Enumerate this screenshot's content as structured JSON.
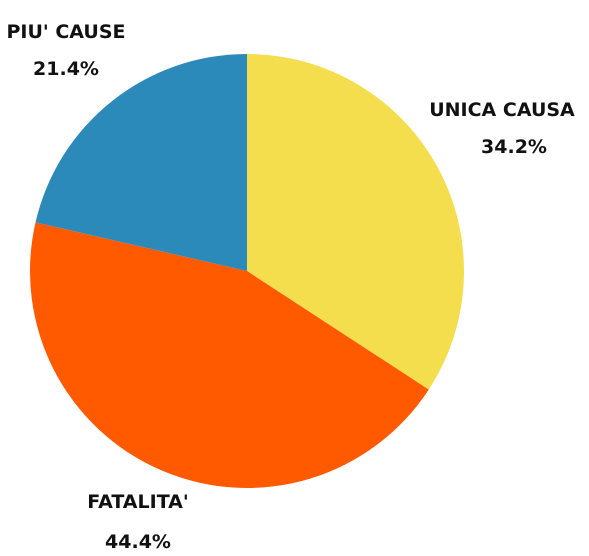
{
  "chart_data": {
    "type": "pie",
    "title": "",
    "start_angle_deg": 0,
    "direction": "clockwise",
    "slices": [
      {
        "label": "UNICA CAUSA",
        "value": 34.2,
        "value_label": "34.2%",
        "color": "#F4DE4E"
      },
      {
        "label": "FATALITA'",
        "value": 44.4,
        "value_label": "44.4%",
        "color": "#FF5A00"
      },
      {
        "label": "PIU' CAUSE",
        "value": 21.4,
        "value_label": "21.4%",
        "color": "#2C8ABA"
      }
    ]
  }
}
